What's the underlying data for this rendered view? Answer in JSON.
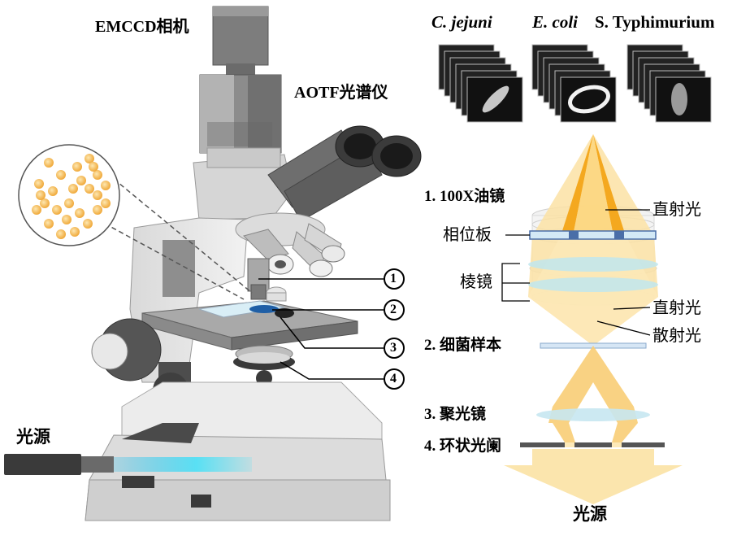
{
  "colors": {
    "cone": "#f7c65a",
    "cone_light": "#fbe3a8",
    "glass": "#bfe3ec",
    "plate_blue": "#cfe6f5",
    "cell": "#f2b74f",
    "light_beam": "#59d8f0"
  },
  "microscope": {
    "camera_label": "EMCCD相机",
    "aotf_label": "AOTF光谱仪",
    "light_source_label": "光源",
    "callouts": [
      "1",
      "2",
      "3",
      "4"
    ]
  },
  "samples": {
    "headers": [
      "C. jejuni",
      "E. coli",
      "S. Typhimurium"
    ]
  },
  "optics": {
    "items": [
      "1. 100X油镜",
      "2. 细菌样本",
      "3. 聚光镜",
      "4. 环状光阑"
    ],
    "labels": {
      "direct_light_top": "直射光",
      "phase_plate": "相位板",
      "prism": "棱镜",
      "direct_light_mid": "直射光",
      "scattered_light": "散射光",
      "light_source_bottom": "光源"
    }
  }
}
